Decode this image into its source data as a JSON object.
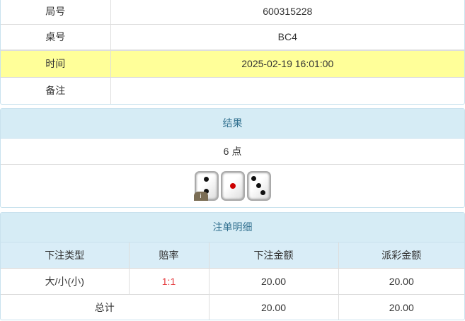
{
  "info": {
    "rows": [
      {
        "label": "局号",
        "value": "600315228"
      },
      {
        "label": "桌号",
        "value": "BC4"
      },
      {
        "label": "时间",
        "value": "2025-02-19 16:01:00",
        "highlight": "#ffff99"
      },
      {
        "label": "备注",
        "value": ""
      }
    ]
  },
  "result": {
    "title": "结果",
    "points": "6 点",
    "dice": [
      2,
      1,
      3
    ],
    "badge": "i"
  },
  "bets": {
    "title": "注单明细",
    "headers": [
      "下注类型",
      "赔率",
      "下注金额",
      "派彩金额"
    ],
    "rows": [
      {
        "type": "大/小(小)",
        "odds": "1:1",
        "amount": "20.00",
        "payout": "20.00"
      }
    ],
    "total": {
      "label": "总计",
      "amount": "20.00",
      "payout": "20.00"
    }
  },
  "colors": {
    "header_bg": "#d6ecf5",
    "header_text": "#31708f",
    "odds": "#e4393c"
  }
}
